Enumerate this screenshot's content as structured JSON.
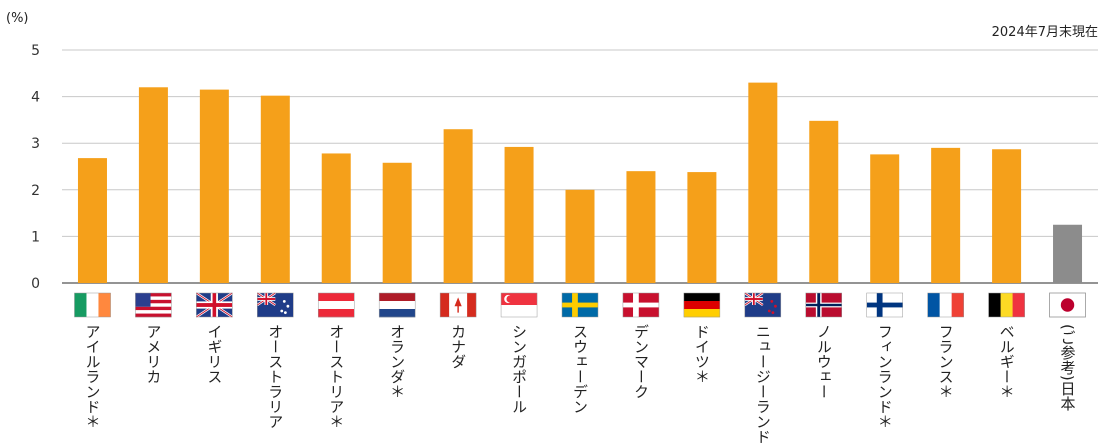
{
  "chart_data": {
    "type": "bar",
    "unit_label": "(%)",
    "note": "2024年7月末現在",
    "ylim": [
      0,
      5
    ],
    "yticks": [
      "0",
      "1",
      "2",
      "3",
      "4",
      "5"
    ],
    "grid": true,
    "categories": [
      "アイルランド＊",
      "アメリカ",
      "イギリス",
      "オーストラリア",
      "オーストリア＊",
      "オランダ＊",
      "カナダ",
      "シンガポール",
      "スウェーデン",
      "デンマーク",
      "ドイツ＊",
      "ニュージーランド",
      "ノルウェー",
      "フィンランド＊",
      "フランス＊",
      "ベルギー＊",
      "(ご参考)日本"
    ],
    "flags": [
      "ireland-flag-icon",
      "usa-flag-icon",
      "uk-flag-icon",
      "australia-flag-icon",
      "austria-flag-icon",
      "netherlands-flag-icon",
      "canada-flag-icon",
      "singapore-flag-icon",
      "sweden-flag-icon",
      "denmark-flag-icon",
      "germany-flag-icon",
      "new-zealand-flag-icon",
      "norway-flag-icon",
      "finland-flag-icon",
      "france-flag-icon",
      "belgium-flag-icon",
      "japan-flag-icon"
    ],
    "values": [
      2.68,
      4.2,
      4.15,
      4.02,
      2.78,
      2.58,
      3.3,
      2.92,
      2.0,
      2.4,
      2.38,
      4.3,
      3.48,
      2.76,
      2.9,
      2.87,
      1.25
    ],
    "colors": {
      "default": "#f5a01a",
      "reference": "#8c8c8c",
      "grid": "#c8c8c8"
    }
  }
}
